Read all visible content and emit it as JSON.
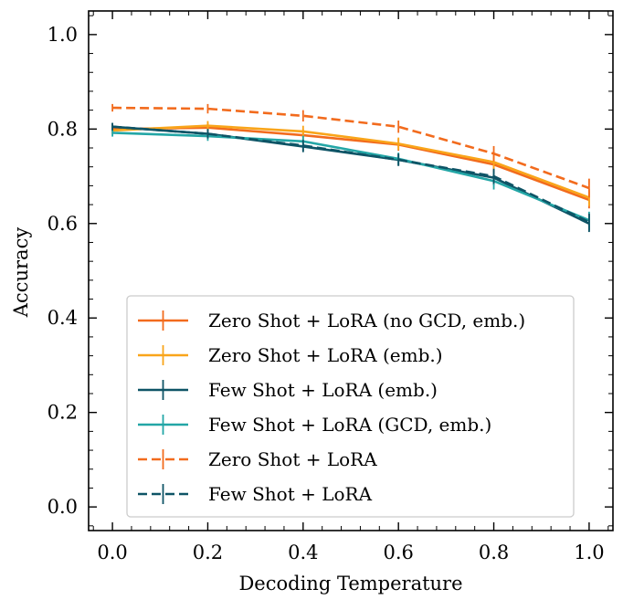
{
  "chart_data": {
    "type": "line",
    "title": "",
    "xlabel": "Decoding Temperature",
    "ylabel": "Accuracy",
    "xlim": [
      -0.05,
      1.05
    ],
    "ylim": [
      -0.05,
      1.05
    ],
    "xticks": [
      0.0,
      0.2,
      0.4,
      0.6,
      0.8,
      1.0
    ],
    "xtick_labels": [
      "0.0",
      "0.2",
      "0.4",
      "0.6",
      "0.8",
      "1.0"
    ],
    "yticks": [
      0.0,
      0.2,
      0.4,
      0.6,
      0.8,
      1.0
    ],
    "ytick_labels": [
      "0.0",
      "0.2",
      "0.4",
      "0.6",
      "0.8",
      "1.0"
    ],
    "grid": false,
    "legend_position": "lower-center",
    "x": [
      0.0,
      0.2,
      0.4,
      0.6,
      0.8,
      1.0
    ],
    "series": [
      {
        "name": "Zero Shot + LoRA (no GCD, emb.)",
        "color": "#f26b1d",
        "dash": "solid",
        "values": [
          0.8,
          0.803,
          0.787,
          0.767,
          0.725,
          0.65
        ],
        "errors": [
          0.008,
          0.01,
          0.012,
          0.013,
          0.015,
          0.018
        ]
      },
      {
        "name": "Zero Shot + LoRA (emb.)",
        "color": "#f9a51a",
        "dash": "solid",
        "values": [
          0.797,
          0.807,
          0.795,
          0.769,
          0.73,
          0.655
        ],
        "errors": [
          0.008,
          0.01,
          0.012,
          0.013,
          0.015,
          0.018
        ]
      },
      {
        "name": "Few Shot + LoRA (emb.)",
        "color": "#0e5466",
        "dash": "solid",
        "values": [
          0.805,
          0.79,
          0.763,
          0.735,
          0.697,
          0.6
        ],
        "errors": [
          0.008,
          0.01,
          0.012,
          0.013,
          0.016,
          0.018
        ]
      },
      {
        "name": "Few Shot + LoRA (GCD, emb.)",
        "color": "#23a6a6",
        "dash": "solid",
        "values": [
          0.792,
          0.785,
          0.774,
          0.737,
          0.69,
          0.607
        ],
        "errors": [
          0.008,
          0.01,
          0.012,
          0.013,
          0.018,
          0.018
        ]
      },
      {
        "name": "Zero Shot + LoRA",
        "color": "#f26b1d",
        "dash": "dashed",
        "values": [
          0.845,
          0.843,
          0.828,
          0.805,
          0.748,
          0.675
        ],
        "errors": [
          0.008,
          0.01,
          0.012,
          0.013,
          0.016,
          0.02
        ]
      },
      {
        "name": "Few Shot + LoRA",
        "color": "#0e5466",
        "dash": "dashed",
        "values": [
          0.805,
          0.79,
          0.765,
          0.735,
          0.7,
          0.603
        ],
        "errors": [
          0.008,
          0.01,
          0.012,
          0.013,
          0.016,
          0.018
        ]
      }
    ]
  }
}
